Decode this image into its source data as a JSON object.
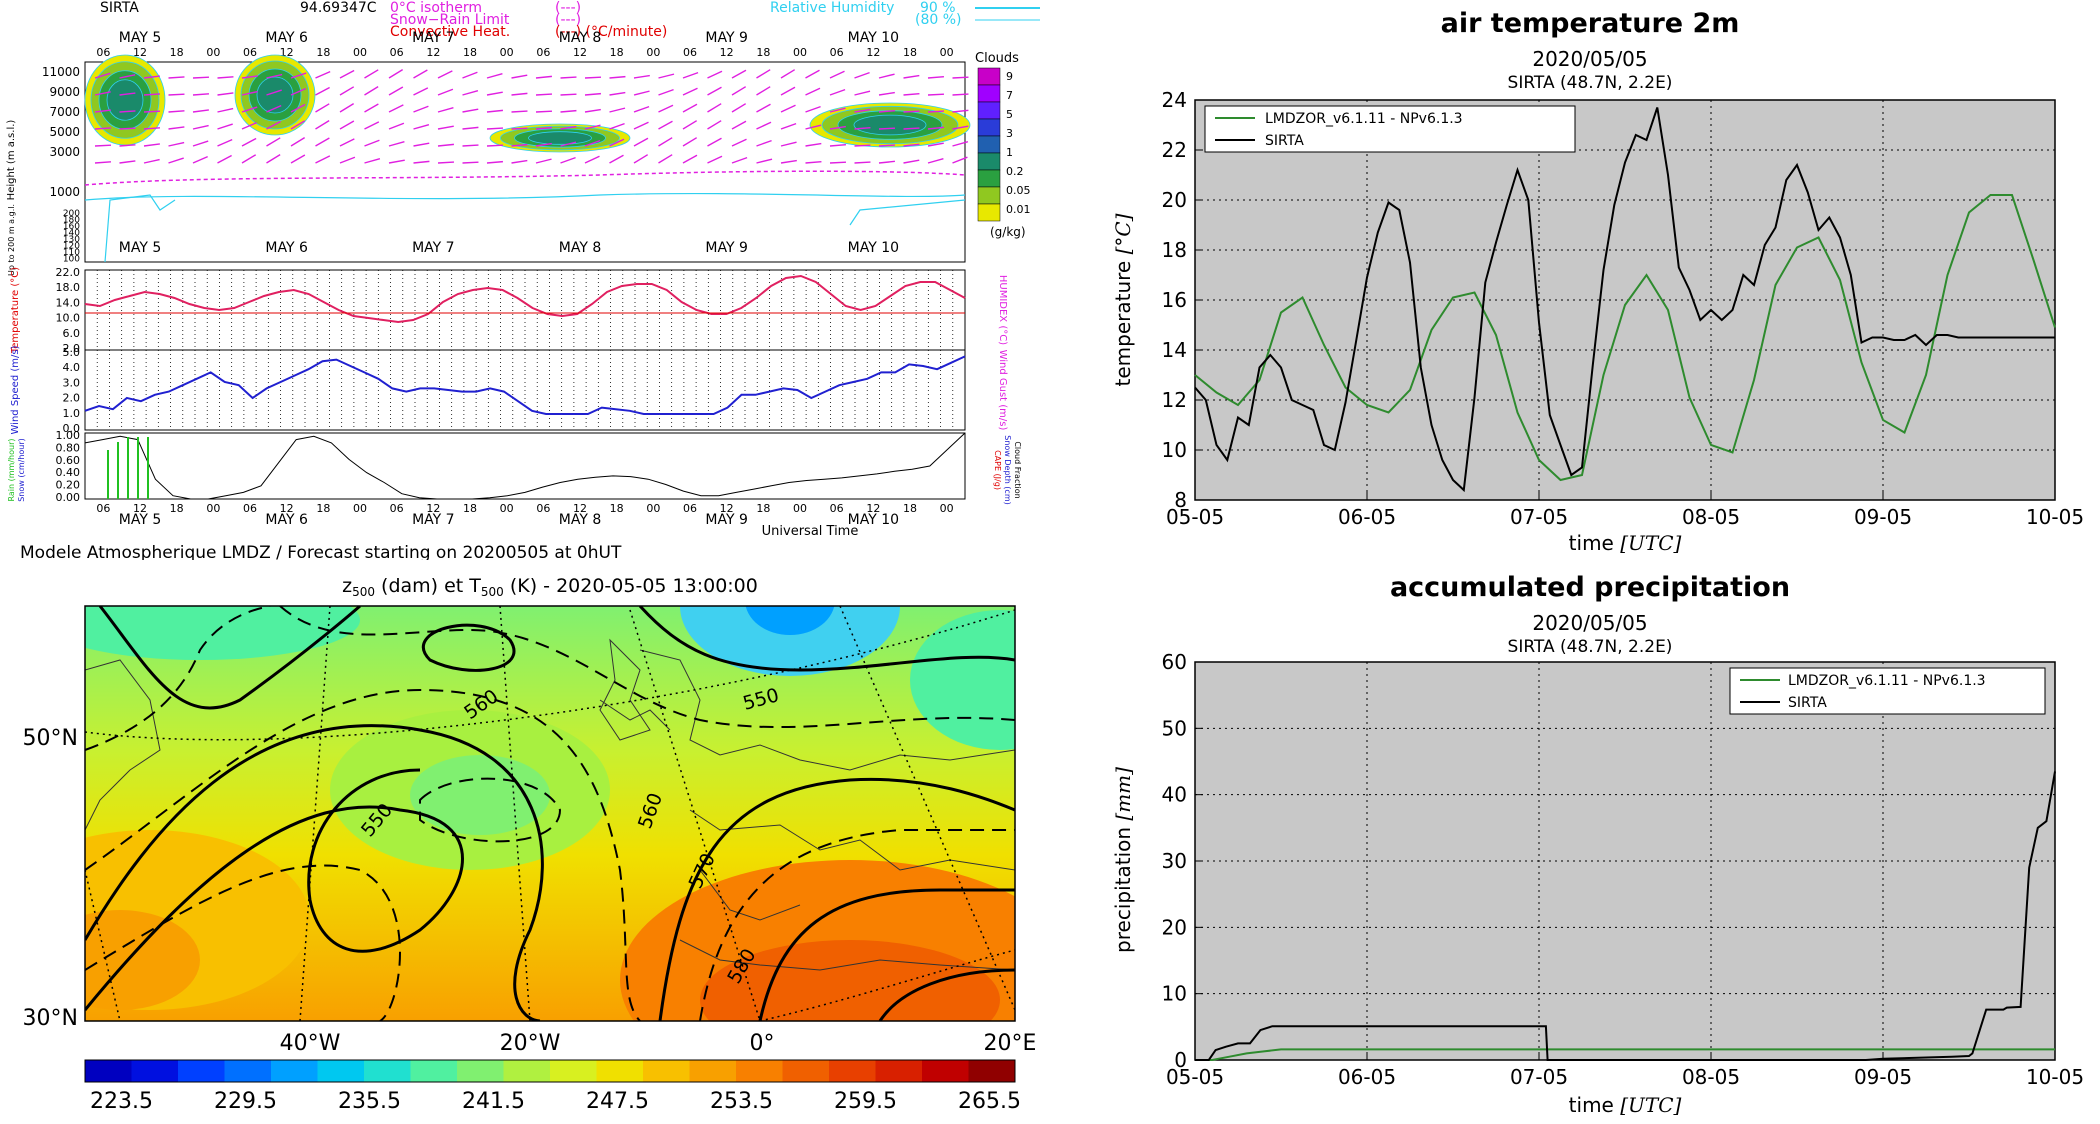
{
  "meteogram": {
    "site": "SIRTA",
    "elevation_text": "94.69347C",
    "legend": {
      "isotherm": "0°C isotherm",
      "isotherm_sym": "(---)",
      "snow_rain": "Snow−Rain Limit",
      "snow_rain_sym": "(---)",
      "convective": "Convective Heat.",
      "convective_sym": "(---) (°C/minute)",
      "rh": "Relative Humidity",
      "rh90": "90 %",
      "rh80": "(80 %)"
    },
    "days": [
      "MAY 5",
      "MAY 6",
      "MAY 7",
      "MAY 8",
      "MAY 9",
      "MAY 10"
    ],
    "hours": [
      "06",
      "12",
      "18",
      "00"
    ],
    "height_label": "Height (m a.s.l.)",
    "height_ticks": [
      "11000",
      "9000",
      "7000",
      "5000",
      "3000",
      "1000",
      "200",
      "180",
      "160",
      "140",
      "130",
      "120",
      "110",
      "100"
    ],
    "height_sub_label": "Up to 200 m a.g.l.",
    "clouds_title": "Clouds",
    "clouds_ticks": [
      "9",
      "7",
      "5",
      "3",
      "1",
      "0.2",
      "0.05",
      "0.01"
    ],
    "clouds_unit": "(g/kg)",
    "clouds_colors": [
      "#c800c8",
      "#a000ff",
      "#6020ff",
      "#2a3cd8",
      "#2060b0",
      "#1a8a6a",
      "#2aa040",
      "#90c820",
      "#e8e800"
    ],
    "temp_label": "Temperature (°C)",
    "temp_ticks": [
      "22.0",
      "18.0",
      "14.0",
      "10.0",
      "6.0",
      "2.0"
    ],
    "humidex_label": "HUMIDEX (°C)",
    "wind_label": "Wind Speed (m/s)",
    "wind_ticks": [
      "5.0",
      "4.0",
      "3.0",
      "2.0",
      "1.0",
      "0.0"
    ],
    "gust_label": "Wind Gust (m/s)",
    "precip_label_rain": "Rain (mm/hour)",
    "precip_label_snow": "Snow (cm/hour)",
    "precip_ticks": [
      "1.00",
      "0.80",
      "0.60",
      "0.40",
      "0.20",
      "0.00"
    ],
    "cape_label": "CAPE (J/g)",
    "snowdepth_label": "Snow Depth (cm)",
    "cloudfrac_label": "Cloud Fraction",
    "universal_time": "Universal Time",
    "footer": "Modele Atmospherique LMDZ / Forecast starting on 20200505 at 0hUT",
    "temp_series": [
      13.5,
      13.0,
      14.5,
      15.5,
      16.5,
      16.0,
      15.0,
      13.5,
      12.5,
      12.0,
      12.5,
      14.0,
      15.5,
      16.5,
      17.0,
      16.0,
      14.0,
      12.0,
      10.5,
      10.0,
      9.5,
      9.0,
      9.5,
      11.0,
      14.0,
      16.0,
      17.0,
      17.5,
      17.0,
      15.0,
      12.5,
      11.0,
      10.5,
      11.0,
      13.5,
      16.5,
      18.0,
      18.5,
      18.5,
      17.0,
      14.0,
      12.0,
      11.0,
      11.0,
      12.5,
      15.0,
      18.0,
      20.0,
      20.5,
      19.0,
      16.0,
      13.0,
      12.0,
      13.0,
      15.5,
      18.0,
      19.0,
      19.0,
      17.0,
      15.0
    ],
    "wind_series": [
      1.2,
      1.5,
      1.3,
      2.0,
      1.8,
      2.2,
      2.4,
      2.8,
      3.2,
      3.6,
      3.0,
      2.8,
      2.0,
      2.6,
      3.0,
      3.4,
      3.8,
      4.3,
      4.4,
      4.0,
      3.6,
      3.2,
      2.6,
      2.4,
      2.6,
      2.6,
      2.5,
      2.4,
      2.4,
      2.6,
      2.4,
      1.8,
      1.2,
      1.0,
      1.0,
      1.0,
      1.0,
      1.4,
      1.3,
      1.2,
      1.0,
      1.0,
      1.0,
      1.0,
      1.0,
      1.0,
      1.4,
      2.2,
      2.2,
      2.4,
      2.6,
      2.5,
      2.0,
      2.4,
      2.8,
      3.0,
      3.2,
      3.6,
      3.6,
      4.1,
      4.0,
      3.8,
      4.2,
      4.6
    ],
    "cloudfrac_series": [
      0.85,
      0.9,
      0.95,
      0.9,
      0.3,
      0.05,
      0.0,
      0.0,
      0.05,
      0.1,
      0.2,
      0.55,
      0.9,
      0.95,
      0.85,
      0.6,
      0.4,
      0.25,
      0.08,
      0.02,
      0.0,
      0.0,
      0.0,
      0.02,
      0.05,
      0.1,
      0.18,
      0.25,
      0.3,
      0.33,
      0.35,
      0.34,
      0.3,
      0.22,
      0.12,
      0.05,
      0.05,
      0.1,
      0.15,
      0.2,
      0.25,
      0.28,
      0.3,
      0.32,
      0.35,
      0.38,
      0.42,
      0.45,
      0.5,
      0.75,
      1.0
    ]
  },
  "map": {
    "title_z": "z",
    "title_z_sub": "500",
    "title_mid": " (dam) et T",
    "title_t_sub": "500",
    "title_end": " (K) - 2020-05-05 13:00:00",
    "lat_labels": [
      "50°N",
      "30°N"
    ],
    "lon_labels": [
      "40°W",
      "20°W",
      "0°",
      "20°E"
    ],
    "contour_labels": [
      "560",
      "550",
      "550",
      "560",
      "570",
      "580"
    ],
    "colorbar_ticks": [
      "223.5",
      "229.5",
      "235.5",
      "241.5",
      "247.5",
      "253.5",
      "259.5",
      "265.5"
    ],
    "colorbar_colors": [
      "#0000c0",
      "#0010e0",
      "#0040ff",
      "#0070ff",
      "#00a0ff",
      "#00c8f0",
      "#20e0d0",
      "#50f0a0",
      "#80f070",
      "#b0f040",
      "#d8f020",
      "#f0e000",
      "#f8c000",
      "#f8a000",
      "#f88000",
      "#f06000",
      "#e84000",
      "#d82000",
      "#c00000",
      "#900000"
    ]
  },
  "chart_data": [
    {
      "type": "line",
      "title": "air temperature 2m",
      "subtitle": "2020/05/05",
      "subtitle2": "SIRTA (48.7N, 2.2E)",
      "xlabel": "time",
      "xlabel_unit": "[UTC]",
      "ylabel": "temperature",
      "ylabel_unit": "[°C]",
      "x_ticks": [
        "05-05",
        "06-05",
        "07-05",
        "08-05",
        "09-05",
        "10-05"
      ],
      "y_ticks": [
        "8",
        "10",
        "12",
        "14",
        "16",
        "18",
        "20",
        "22",
        "24"
      ],
      "ylim": [
        8,
        24
      ],
      "grid": true,
      "legend_position": "top-left",
      "series": [
        {
          "name": "LMDZOR_v6.1.11 - NPv6.1.3",
          "color": "#2e8b2e",
          "x": [
            0,
            0.125,
            0.25,
            0.375,
            0.5,
            0.625,
            0.75,
            0.875,
            1,
            1.125,
            1.25,
            1.375,
            1.5,
            1.625,
            1.75,
            1.875,
            2,
            2.125,
            2.25,
            2.375,
            2.5,
            2.625,
            2.75,
            2.875,
            3,
            3.125,
            3.25,
            3.375,
            3.5,
            3.625,
            3.75,
            3.875,
            4,
            4.125,
            4.25,
            4.375,
            4.5,
            4.625,
            4.75,
            4.875,
            5
          ],
          "values": [
            13.0,
            12.3,
            11.8,
            12.8,
            15.5,
            16.1,
            14.2,
            12.5,
            11.8,
            11.5,
            12.4,
            14.8,
            16.1,
            16.3,
            14.6,
            11.5,
            9.6,
            8.8,
            9.0,
            13.0,
            15.8,
            17.0,
            15.6,
            12.1,
            10.2,
            9.9,
            12.8,
            16.6,
            18.1,
            18.5,
            16.8,
            13.5,
            11.2,
            10.7,
            13.0,
            17.0,
            19.5,
            20.2,
            20.2,
            17.6,
            14.9
          ]
        },
        {
          "name": "SIRTA",
          "color": "#000000",
          "x": [
            0,
            0.0625,
            0.125,
            0.1875,
            0.25,
            0.3125,
            0.375,
            0.4375,
            0.5,
            0.5625,
            0.625,
            0.6875,
            0.75,
            0.8125,
            0.875,
            0.9375,
            1,
            1.0625,
            1.125,
            1.1875,
            1.25,
            1.3125,
            1.375,
            1.4375,
            1.5,
            1.5625,
            1.625,
            1.6875,
            1.75,
            1.8125,
            1.875,
            1.9375,
            2,
            2.0625,
            2.125,
            2.1875,
            2.25,
            2.3125,
            2.375,
            2.4375,
            2.5,
            2.5625,
            2.625,
            2.6875,
            2.75,
            2.8125,
            2.875,
            2.9375,
            3,
            3.0625,
            3.125,
            3.1875,
            3.25,
            3.3125,
            3.375,
            3.4375,
            3.5,
            3.5625,
            3.625,
            3.6875,
            3.75,
            3.8125,
            3.875,
            3.9375,
            4,
            4.0625,
            4.125,
            4.1875,
            4.25,
            4.3125,
            4.375,
            4.4375,
            4.5,
            4.5625,
            4.625,
            4.6875,
            4.75,
            4.8125,
            4.875,
            4.9375,
            5
          ],
          "values": [
            12.5,
            12.0,
            10.2,
            9.6,
            11.3,
            11.0,
            13.3,
            13.8,
            13.3,
            12.0,
            11.8,
            11.6,
            10.2,
            10.0,
            11.9,
            14.4,
            16.9,
            18.7,
            19.9,
            19.6,
            17.5,
            13.3,
            11.0,
            9.6,
            8.8,
            8.4,
            12.1,
            16.7,
            18.3,
            19.8,
            21.2,
            20.0,
            15.1,
            11.4,
            10.2,
            9.0,
            9.3,
            13.4,
            17.2,
            19.8,
            21.5,
            22.6,
            22.4,
            23.7,
            21.0,
            17.3,
            16.4,
            15.2,
            15.6,
            15.2,
            15.6,
            17.0,
            16.6,
            18.2,
            18.9,
            20.8,
            21.4,
            20.3,
            18.8,
            19.3,
            18.5,
            17.0,
            14.3,
            14.5,
            14.5,
            14.4,
            14.4,
            14.6,
            14.2,
            14.6,
            14.6,
            14.5,
            14.5,
            14.5,
            14.5,
            14.5,
            14.5,
            14.5,
            14.5,
            14.5,
            14.5
          ]
        }
      ]
    },
    {
      "type": "line",
      "title": "accumulated precipitation",
      "subtitle": "2020/05/05",
      "subtitle2": "SIRTA (48.7N, 2.2E)",
      "xlabel": "time",
      "xlabel_unit": "[UTC]",
      "ylabel": "precipitation",
      "ylabel_unit": "[mm]",
      "x_ticks": [
        "05-05",
        "06-05",
        "07-05",
        "08-05",
        "09-05",
        "10-05"
      ],
      "y_ticks": [
        "0",
        "10",
        "20",
        "30",
        "40",
        "50",
        "60"
      ],
      "ylim": [
        0,
        60
      ],
      "grid": true,
      "legend_position": "top-right",
      "series": [
        {
          "name": "LMDZOR_v6.1.11 - NPv6.1.3",
          "color": "#2e8b2e",
          "x": [
            0,
            0.1,
            0.2,
            0.3,
            0.4,
            0.5,
            1,
            2,
            3,
            4,
            4.5,
            5
          ],
          "values": [
            0,
            0,
            0.5,
            1.0,
            1.3,
            1.6,
            1.6,
            1.6,
            1.6,
            1.6,
            1.6,
            1.6
          ]
        },
        {
          "name": "SIRTA",
          "color": "#000000",
          "x": [
            0,
            0.08,
            0.12,
            0.18,
            0.25,
            0.32,
            0.38,
            0.45,
            0.55,
            1.0,
            1.5,
            2.0,
            2.04,
            2.05,
            2.5,
            3,
            3.5,
            3.9,
            4.0,
            4.3,
            4.4,
            4.5,
            4.52,
            4.6,
            4.7,
            4.72,
            4.8,
            4.85,
            4.9,
            4.95,
            5.0
          ],
          "values": [
            0,
            0,
            1.5,
            2.0,
            2.5,
            2.5,
            4.5,
            5.1,
            5.1,
            5.1,
            5.1,
            5.1,
            5.1,
            0,
            0,
            0,
            0,
            0,
            0.2,
            0.4,
            0.5,
            0.6,
            1.0,
            7.6,
            7.6,
            7.9,
            8.0,
            29.0,
            35.0,
            36.0,
            43.5
          ]
        }
      ]
    }
  ]
}
